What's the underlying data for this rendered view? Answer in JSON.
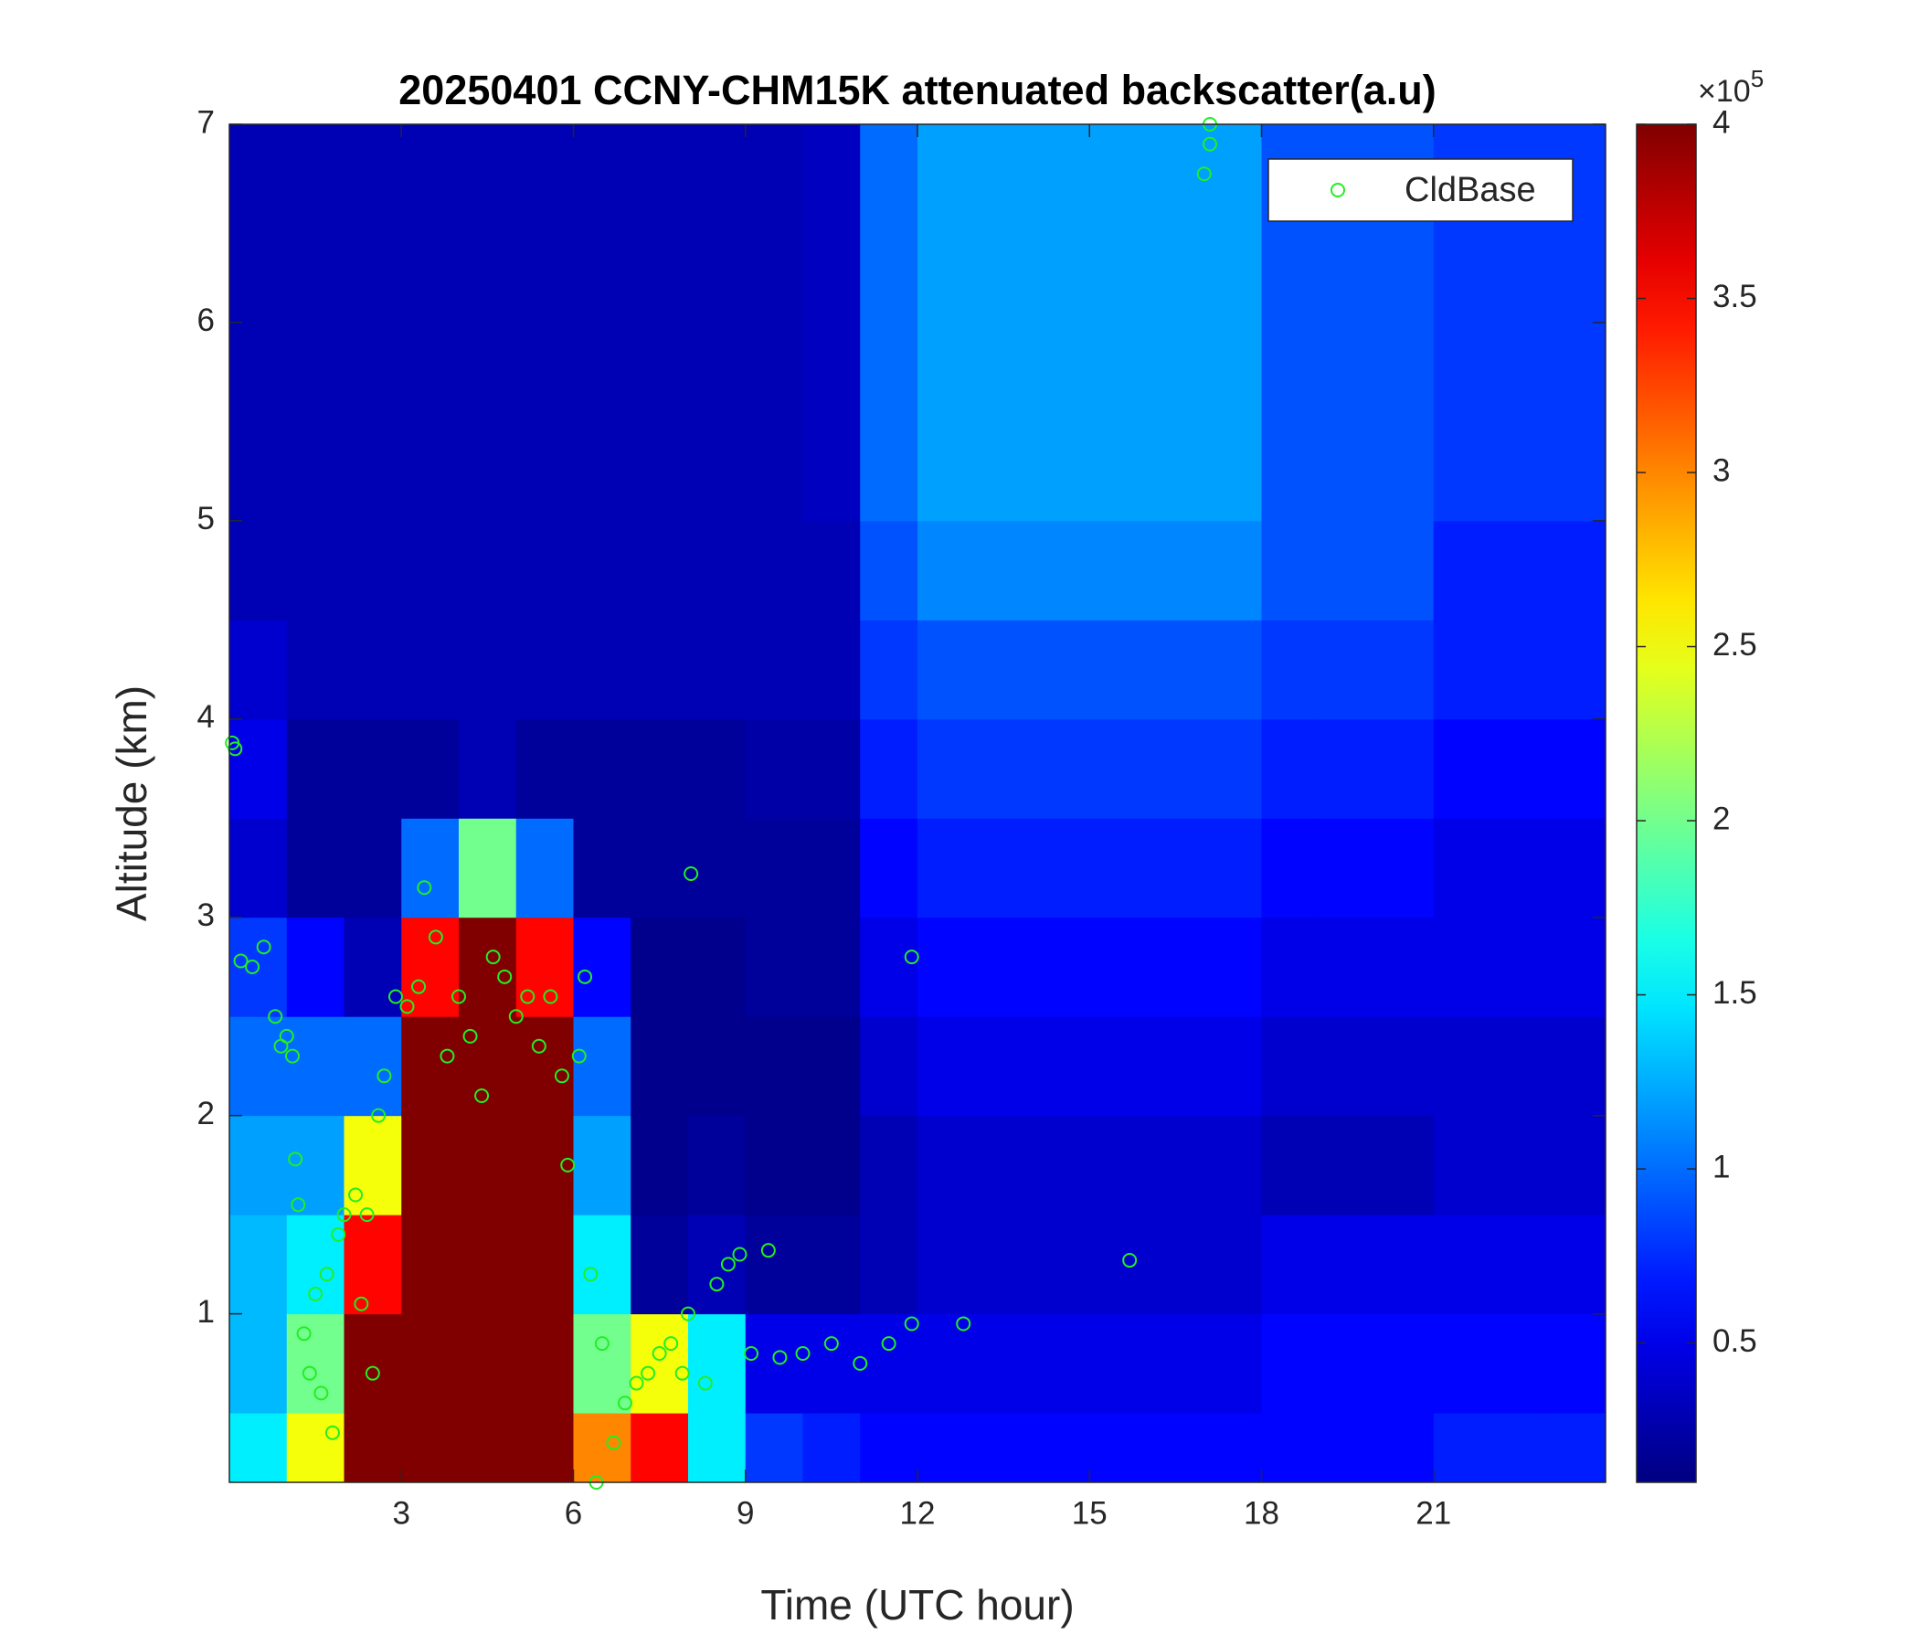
{
  "chart_data": {
    "type": "heatmap",
    "title": "20250401 CCNY-CHM15K attenuated backscatter(a.u)",
    "x_label": "Time (UTC hour)",
    "y_label": "Altitude (km)",
    "xlim": [
      0,
      24
    ],
    "ylim": [
      0.15,
      7
    ],
    "xticks": [
      3,
      6,
      9,
      12,
      15,
      18,
      21
    ],
    "yticks": [
      1,
      2,
      3,
      4,
      5,
      6,
      7
    ],
    "colormap": "jet",
    "clim": [
      0.1,
      4
    ],
    "cticks": [
      0.5,
      1,
      1.5,
      2,
      2.5,
      3,
      3.5,
      4
    ],
    "colorbar_multiplier": {
      "base": "×10",
      "exponent": "5"
    },
    "x_edges": [
      0,
      1,
      2,
      3,
      4,
      5,
      6,
      7,
      8,
      9,
      10,
      11,
      12,
      13,
      14,
      15,
      16,
      17,
      18,
      19,
      20,
      21,
      22,
      23,
      24
    ],
    "y_edges": [
      0.15,
      0.5,
      1,
      1.5,
      2,
      2.5,
      3,
      3.5,
      4,
      4.5,
      5,
      5.5,
      6,
      6.5,
      7
    ],
    "values": [
      [
        1.5,
        1.3,
        1.3,
        1.2,
        1.0,
        0.8,
        0.4,
        0.5,
        0.4,
        0.3,
        0.3,
        0.3,
        0.3,
        0.3
      ],
      [
        2.5,
        2.0,
        1.5,
        1.2,
        1.0,
        0.6,
        0.2,
        0.2,
        0.3,
        0.3,
        0.3,
        0.3,
        0.3,
        0.3
      ],
      [
        4,
        4,
        3.5,
        2.5,
        1.0,
        0.3,
        0.2,
        0.2,
        0.3,
        0.3,
        0.3,
        0.3,
        0.3,
        0.3
      ],
      [
        4,
        4,
        4,
        4,
        4,
        3.5,
        1.0,
        0.2,
        0.3,
        0.3,
        0.3,
        0.3,
        0.3,
        0.3
      ],
      [
        4,
        4,
        4,
        4,
        4,
        4,
        2.0,
        0.3,
        0.3,
        0.3,
        0.3,
        0.3,
        0.3,
        0.3
      ],
      [
        4,
        4,
        4,
        4,
        4,
        3.5,
        1.0,
        0.2,
        0.3,
        0.3,
        0.3,
        0.3,
        0.3,
        0.3
      ],
      [
        3,
        2,
        1.5,
        1.2,
        1.0,
        0.6,
        0.2,
        0.2,
        0.3,
        0.3,
        0.3,
        0.3,
        0.3,
        0.3
      ],
      [
        3.5,
        2.5,
        0.2,
        0.15,
        0.15,
        0.15,
        0.2,
        0.2,
        0.3,
        0.3,
        0.3,
        0.3,
        0.3,
        0.3
      ],
      [
        1.5,
        1.5,
        0.3,
        0.2,
        0.15,
        0.15,
        0.2,
        0.2,
        0.3,
        0.3,
        0.3,
        0.3,
        0.3,
        0.3
      ],
      [
        0.8,
        0.5,
        0.2,
        0.15,
        0.15,
        0.2,
        0.2,
        0.25,
        0.3,
        0.3,
        0.3,
        0.3,
        0.3,
        0.3
      ],
      [
        0.7,
        0.5,
        0.2,
        0.15,
        0.15,
        0.2,
        0.2,
        0.25,
        0.3,
        0.3,
        0.35,
        0.35,
        0.35,
        0.35
      ],
      [
        0.6,
        0.5,
        0.3,
        0.3,
        0.4,
        0.5,
        0.6,
        0.7,
        0.8,
        0.9,
        1.0,
        1.0,
        1.0,
        1.0
      ],
      [
        0.6,
        0.5,
        0.4,
        0.4,
        0.5,
        0.6,
        0.7,
        0.8,
        0.9,
        1.1,
        1.2,
        1.2,
        1.2,
        1.2
      ],
      [
        0.6,
        0.5,
        0.4,
        0.4,
        0.5,
        0.6,
        0.7,
        0.8,
        0.9,
        1.1,
        1.2,
        1.2,
        1.2,
        1.2
      ],
      [
        0.6,
        0.5,
        0.4,
        0.4,
        0.5,
        0.6,
        0.7,
        0.8,
        0.9,
        1.1,
        1.2,
        1.2,
        1.2,
        1.2
      ],
      [
        0.6,
        0.5,
        0.4,
        0.4,
        0.5,
        0.6,
        0.7,
        0.8,
        0.9,
        1.1,
        1.2,
        1.2,
        1.2,
        1.2
      ],
      [
        0.6,
        0.5,
        0.4,
        0.4,
        0.5,
        0.6,
        0.7,
        0.8,
        0.9,
        1.1,
        1.2,
        1.2,
        1.2,
        1.2
      ],
      [
        0.6,
        0.5,
        0.4,
        0.4,
        0.5,
        0.6,
        0.7,
        0.8,
        0.9,
        1.1,
        1.2,
        1.2,
        1.2,
        1.2
      ],
      [
        0.6,
        0.6,
        0.5,
        0.3,
        0.4,
        0.5,
        0.6,
        0.7,
        0.8,
        0.9,
        0.9,
        0.9,
        0.9,
        0.9
      ],
      [
        0.6,
        0.6,
        0.5,
        0.3,
        0.4,
        0.5,
        0.6,
        0.7,
        0.8,
        0.9,
        0.9,
        0.9,
        0.9,
        0.9
      ],
      [
        0.6,
        0.6,
        0.5,
        0.3,
        0.4,
        0.5,
        0.6,
        0.7,
        0.8,
        0.9,
        0.9,
        0.9,
        0.9,
        0.9
      ],
      [
        0.7,
        0.6,
        0.5,
        0.4,
        0.4,
        0.5,
        0.5,
        0.6,
        0.7,
        0.7,
        0.8,
        0.8,
        0.8,
        0.8
      ],
      [
        0.7,
        0.6,
        0.5,
        0.4,
        0.4,
        0.5,
        0.5,
        0.6,
        0.7,
        0.7,
        0.8,
        0.8,
        0.8,
        0.8
      ],
      [
        0.7,
        0.6,
        0.5,
        0.4,
        0.4,
        0.5,
        0.5,
        0.6,
        0.7,
        0.7,
        0.8,
        0.8,
        0.8,
        0.8
      ]
    ],
    "overlay": {
      "type": "scatter",
      "name": "CldBase",
      "color": "#22ee22",
      "x": [
        0.05,
        0.1,
        0.2,
        0.4,
        0.6,
        0.8,
        0.9,
        1.0,
        1.1,
        1.15,
        1.2,
        1.3,
        1.4,
        1.5,
        1.6,
        1.7,
        1.8,
        1.9,
        2.0,
        2.2,
        2.3,
        2.4,
        2.5,
        2.6,
        2.7,
        2.9,
        3.1,
        3.3,
        3.4,
        3.6,
        3.8,
        4.0,
        4.2,
        4.4,
        4.6,
        4.8,
        5.0,
        5.2,
        5.4,
        5.6,
        5.8,
        5.9,
        6.1,
        6.2,
        6.3,
        6.4,
        6.5,
        6.7,
        6.9,
        7.1,
        7.3,
        7.5,
        7.7,
        7.9,
        8.0,
        8.05,
        8.3,
        8.5,
        8.7,
        8.9,
        9.1,
        9.4,
        9.6,
        10.0,
        10.5,
        11.0,
        11.5,
        11.9,
        11.9,
        12.8,
        15.7,
        17.0,
        17.1,
        17.1
      ],
      "values": [
        3.88,
        3.85,
        2.78,
        2.75,
        2.85,
        2.5,
        2.35,
        2.4,
        2.3,
        1.78,
        1.55,
        0.9,
        0.7,
        1.1,
        0.6,
        1.2,
        0.4,
        1.4,
        1.5,
        1.6,
        1.05,
        1.5,
        0.7,
        2.0,
        2.2,
        2.6,
        2.55,
        2.65,
        3.15,
        2.9,
        2.3,
        2.6,
        2.4,
        2.1,
        2.8,
        2.7,
        2.5,
        2.6,
        2.35,
        2.6,
        2.2,
        1.75,
        2.3,
        2.7,
        1.2,
        0.15,
        0.85,
        0.35,
        0.55,
        0.65,
        0.7,
        0.8,
        0.85,
        0.7,
        1.0,
        3.22,
        0.65,
        1.15,
        1.25,
        1.3,
        0.8,
        1.32,
        0.78,
        0.8,
        0.85,
        0.75,
        0.85,
        0.95,
        2.8,
        0.95,
        1.27,
        6.75,
        6.9,
        7.0
      ]
    }
  }
}
